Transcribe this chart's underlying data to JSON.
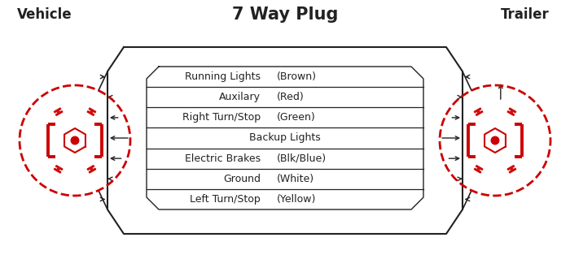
{
  "title": "7 Way Plug",
  "left_label": "Vehicle",
  "right_label": "Trailer",
  "bg_color": "#ffffff",
  "wire_rows": [
    {
      "label": "Running Lights",
      "color_text": "(Brown)"
    },
    {
      "label": "Auxilary",
      "color_text": "(Red)"
    },
    {
      "label": "Right Turn/Stop",
      "color_text": "(Green)"
    },
    {
      "label": "Backup Lights",
      "color_text": ""
    },
    {
      "label": "Electric Brakes",
      "color_text": "(Blk/Blue)"
    },
    {
      "label": "Ground",
      "color_text": "(White)"
    },
    {
      "label": "Left Turn/Stop",
      "color_text": "(Yellow)"
    }
  ],
  "red_color": "#cc0000",
  "line_color": "#222222",
  "text_color": "#222222",
  "title_fontsize": 15,
  "label_fontsize": 12,
  "wire_fontsize": 9
}
